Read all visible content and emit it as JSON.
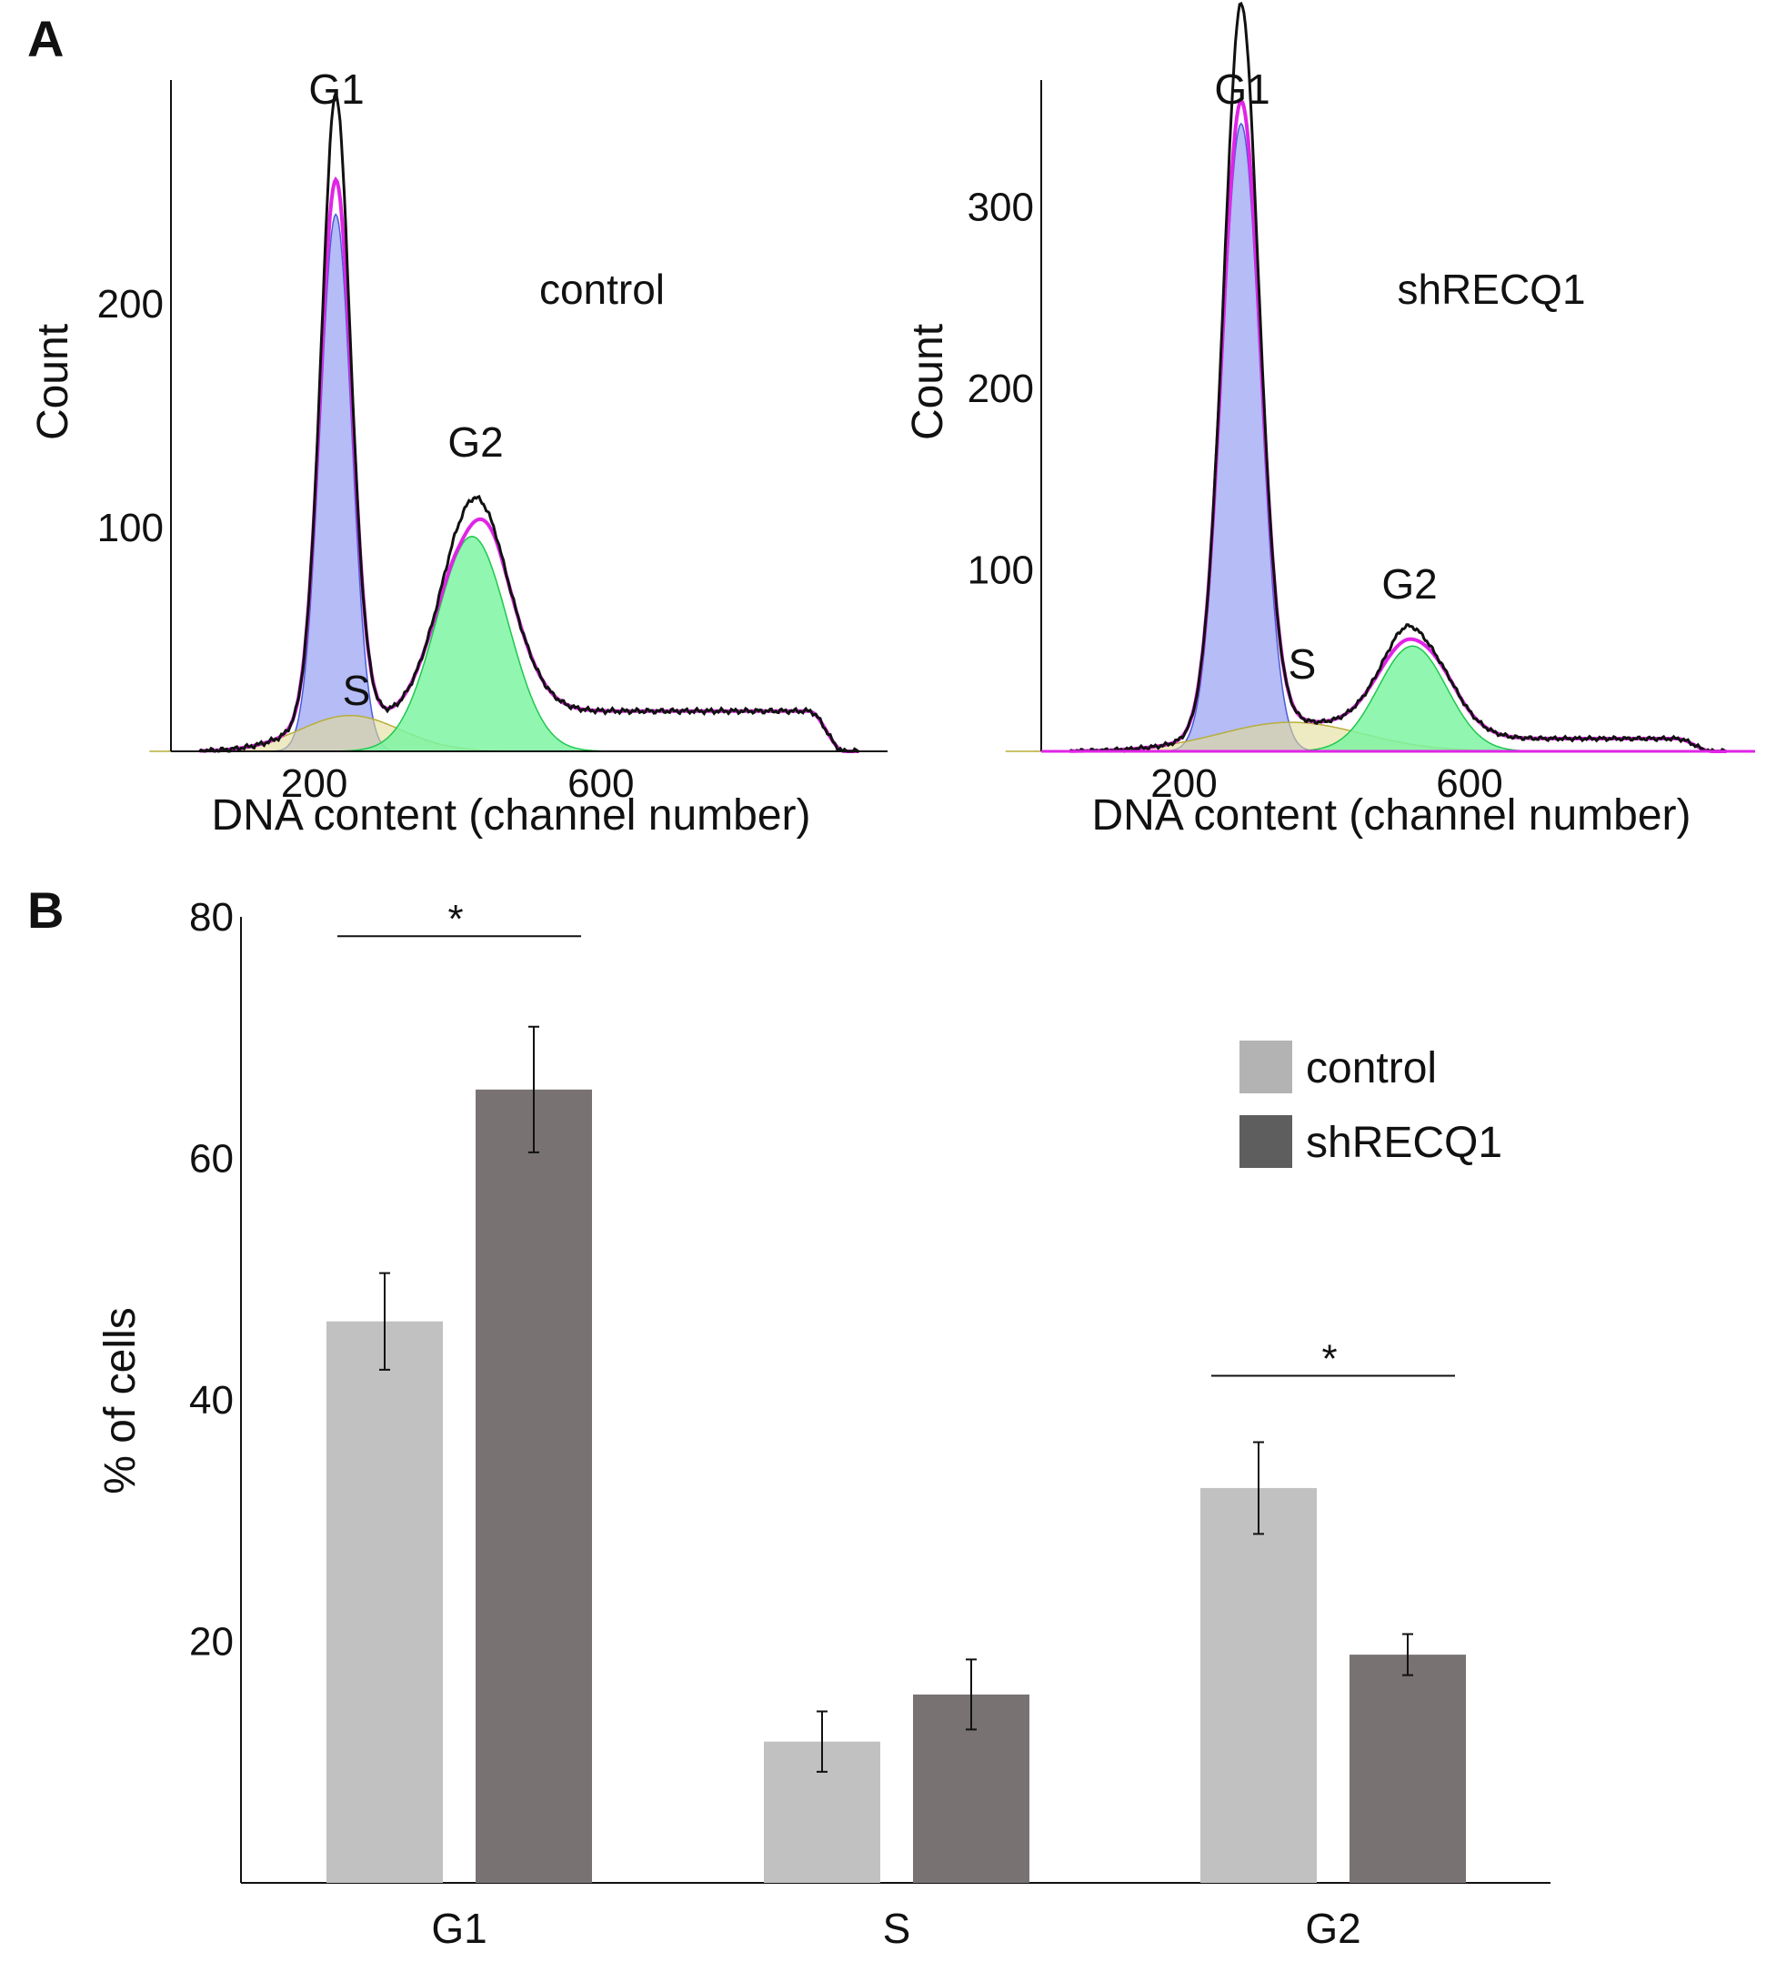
{
  "panel_labels": {
    "a": "A",
    "b": "B"
  },
  "colors": {
    "g1_fill": "#a8b0f5",
    "g1_line": "#4a5bd8",
    "s_fill": "#e2dc98",
    "s_line": "#b8ae3a",
    "g2_fill": "#7cf5a2",
    "g2_line": "#1fc84e",
    "fit_line": "#e024e6",
    "data_line": "#111111",
    "control_bar": "#c1c1c1",
    "shrecq1_bar": "#787272",
    "legend_control": "#b3b3b3",
    "legend_shrecq1": "#5e5e5e"
  },
  "chart_data": [
    {
      "type": "area",
      "id": "histogram-control",
      "title": "control",
      "xlabel": "DNA content (channel number)",
      "ylabel": "Count",
      "xlim": [
        0,
        1000
      ],
      "ylim": [
        0,
        300
      ],
      "xticks": [
        200,
        600
      ],
      "yticks": [
        100,
        200
      ],
      "peak_labels": {
        "g1": "G1",
        "s": "S",
        "g2": "G2"
      },
      "components": {
        "g1": {
          "mu": 230,
          "sigma": 22,
          "amp": 240
        },
        "s": {
          "mu": 250,
          "sigma": 70,
          "amp": 16
        },
        "g2": {
          "mu": 420,
          "sigma": 50,
          "amp": 96
        }
      },
      "tail": {
        "start": 400,
        "level": 18,
        "end": 930
      }
    },
    {
      "type": "area",
      "id": "histogram-shrecq1",
      "title": "shRECQ1",
      "xlabel": "DNA content (channel number)",
      "ylabel": "Count",
      "xlim": [
        0,
        1000
      ],
      "ylim": [
        0,
        370
      ],
      "xticks": [
        200,
        600
      ],
      "yticks": [
        100,
        200,
        300
      ],
      "peak_labels": {
        "g1": "G1",
        "s": "S",
        "g2": "G2"
      },
      "components": {
        "g1": {
          "mu": 280,
          "sigma": 27,
          "amp": 346
        },
        "s": {
          "mu": 350,
          "sigma": 100,
          "amp": 16
        },
        "g2": {
          "mu": 520,
          "sigma": 48,
          "amp": 58
        }
      },
      "tail": {
        "start": 520,
        "level": 7,
        "end": 930
      }
    },
    {
      "type": "bar",
      "id": "bar-chart",
      "ylabel": "% of cells",
      "xlabel": "",
      "ylim": [
        0,
        80
      ],
      "yticks": [
        20,
        40,
        60,
        80
      ],
      "categories": [
        "G1",
        "S",
        "G2"
      ],
      "series": [
        {
          "name": "control",
          "values": [
            46.5,
            11.7,
            32.7
          ],
          "errors": [
            4.0,
            2.5,
            3.8
          ]
        },
        {
          "name": "shRECQ1",
          "values": [
            65.7,
            15.6,
            18.9
          ],
          "errors": [
            5.2,
            2.9,
            1.7
          ]
        }
      ],
      "significance": [
        {
          "category": "G1",
          "label": "*"
        },
        {
          "category": "G2",
          "label": "*"
        }
      ],
      "legend_position": "top-right"
    }
  ]
}
